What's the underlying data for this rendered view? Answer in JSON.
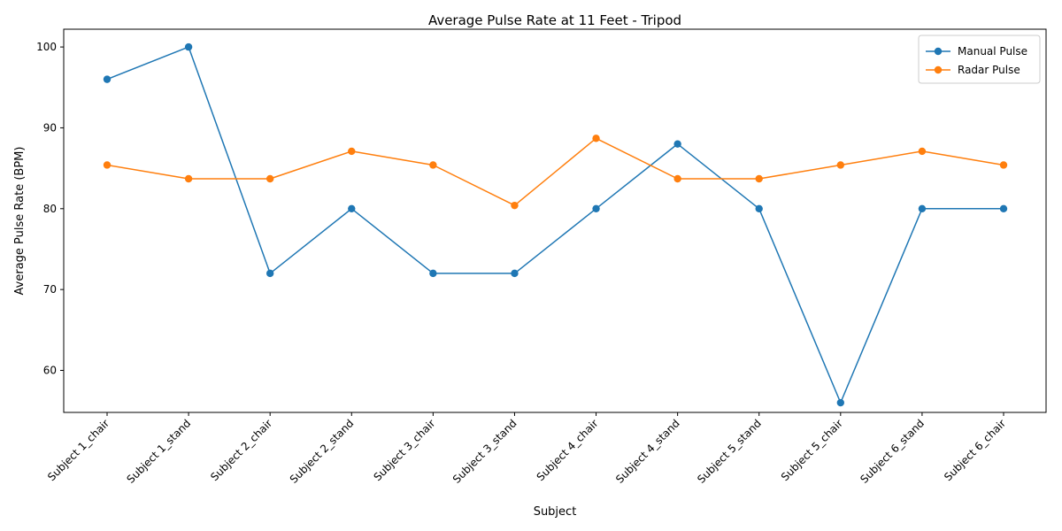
{
  "chart_data": {
    "type": "line",
    "title": "Average Pulse Rate at 11 Feet - Tripod",
    "xlabel": "Subject",
    "ylabel": "Average Pulse Rate (BPM)",
    "categories": [
      "Subject 1_chair",
      "Subject 1_stand",
      "Subject 2_chair",
      "Subject 2_stand",
      "Subject 3_chair",
      "Subject 3_stand",
      "Subject 4_chair",
      "Subject 4_stand",
      "Subject 5_stand",
      "Subject 5_chair",
      "Subject 6_stand",
      "Subject 6_chair"
    ],
    "series": [
      {
        "name": "Manual Pulse",
        "color": "#1f77b4",
        "values": [
          96,
          100,
          72,
          80,
          72,
          72,
          80,
          88,
          80,
          56,
          80,
          80
        ]
      },
      {
        "name": "Radar Pulse",
        "color": "#ff7f0e",
        "values": [
          85.4,
          83.7,
          83.7,
          87.1,
          85.4,
          80.4,
          88.7,
          83.7,
          83.7,
          85.4,
          87.1,
          85.4
        ]
      }
    ],
    "ylim": [
      54.8,
      102.2
    ],
    "yticks": [
      60,
      70,
      80,
      90,
      100
    ],
    "grid": false,
    "legend_position": "top-right",
    "marker": "circle"
  }
}
